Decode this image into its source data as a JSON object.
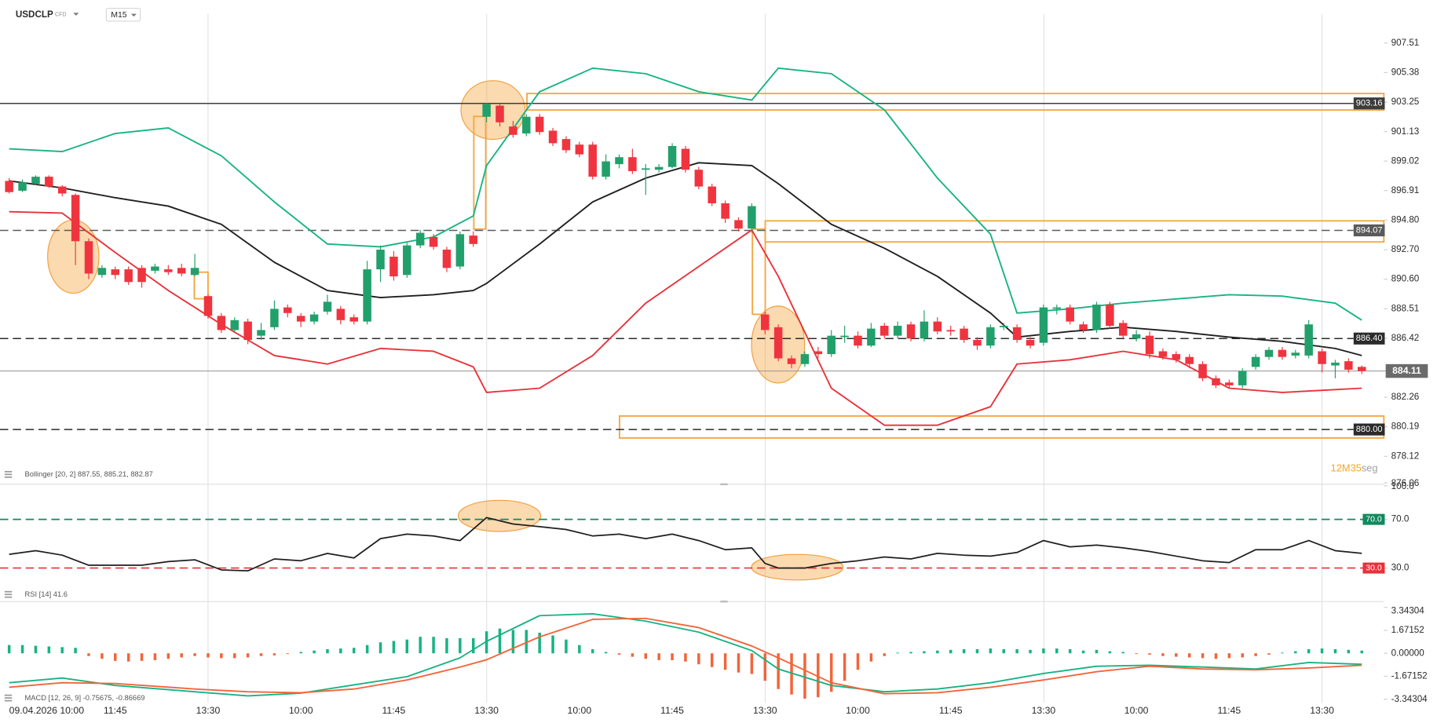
{
  "header": {
    "symbol": "USDCLP",
    "instrument_type": "CFD",
    "timeframe": "M15"
  },
  "chart_data": [
    {
      "type": "candlestick",
      "legend": "Bollinger [20, 2] 887.55, 885.21, 882.87",
      "log_scale": true,
      "ylim": [
        876.2,
        909.63
      ],
      "yticks": [
        907.51,
        905.38,
        903.25,
        901.13,
        899.02,
        896.91,
        {
          "value": 894.8,
          "label": "894.80"
        },
        {
          "value": 892.7,
          "label": "892.70"
        },
        {
          "value": 890.6,
          "label": "890.60"
        },
        888.51,
        886.42,
        882.26,
        880.19,
        878.12,
        876.06
      ],
      "categories": [
        "09.04.2026 10:00",
        null,
        null,
        null,
        null,
        null,
        null,
        null,
        "11:45",
        null,
        null,
        null,
        null,
        null,
        null,
        "13:30",
        null,
        null,
        null,
        null,
        null,
        null,
        "10:00",
        null,
        null,
        null,
        null,
        null,
        null,
        "11:45",
        null,
        null,
        null,
        null,
        null,
        null,
        "13:30",
        null,
        null,
        null,
        null,
        null,
        null,
        "10:00",
        null,
        null,
        null,
        null,
        null,
        null,
        "11:45",
        null,
        null,
        null,
        null,
        null,
        null,
        "13:30",
        null,
        null,
        null,
        null,
        null,
        null,
        "10:00",
        null,
        null,
        null,
        null,
        null,
        null,
        "11:45",
        null,
        null,
        null,
        null,
        null,
        null,
        "13:30",
        null,
        null,
        null,
        null,
        null,
        null,
        "10:00",
        null,
        null,
        null,
        null,
        null,
        null,
        "11:45",
        null,
        null,
        null,
        null,
        null,
        null,
        "13:30",
        null,
        null,
        null
      ],
      "up_color": "#22a06b",
      "down_color": "#f0343f",
      "open": [
        897.6,
        896.9,
        897.4,
        897.9,
        897.2,
        896.6,
        893.3,
        890.9,
        891.3,
        891.3,
        891.4,
        891.2,
        891.3,
        891.4,
        890.9,
        889.4,
        888.0,
        887.0,
        887.6,
        886.6,
        887.2,
        888.6,
        888.0,
        887.6,
        888.3,
        888.5,
        887.9,
        887.6,
        891.3,
        892.2,
        890.9,
        893.0,
        893.6,
        892.7,
        891.5,
        893.7,
        902.2,
        903.0,
        901.5,
        901.0,
        902.2,
        901.2,
        900.6,
        900.2,
        900.2,
        897.9,
        898.8,
        899.3,
        898.4,
        898.4,
        898.6,
        899.9,
        898.4,
        897.2,
        896.0,
        894.8,
        894.2,
        888.1,
        887.2,
        885.0,
        884.6,
        885.5,
        885.3,
        886.5,
        886.6,
        885.9,
        887.3,
        886.6,
        887.4,
        886.4,
        887.6,
        887.0,
        887.1,
        886.3,
        885.9,
        887.2,
        887.2,
        886.3,
        886.1,
        888.5,
        888.6,
        887.4,
        887.0,
        888.8,
        887.5,
        886.4,
        886.6,
        885.5,
        885.3,
        885.1,
        884.6,
        883.6,
        883.3,
        883.1,
        884.4,
        885.1,
        885.6,
        885.2,
        885.2,
        885.5,
        884.5,
        884.8,
        884.4
      ],
      "high": [
        897.8,
        897.7,
        898.0,
        898.0,
        897.3,
        896.7,
        893.5,
        891.6,
        891.5,
        891.5,
        891.6,
        891.7,
        891.6,
        891.7,
        892.4,
        889.5,
        888.2,
        887.9,
        887.8,
        887.5,
        889.1,
        888.8,
        888.2,
        888.3,
        889.5,
        888.7,
        888.1,
        891.9,
        893.0,
        892.6,
        893.2,
        894.1,
        893.8,
        892.9,
        894.0,
        894.0,
        903.2,
        903.1,
        901.9,
        902.4,
        902.4,
        901.4,
        900.8,
        900.4,
        900.4,
        899.5,
        899.5,
        899.9,
        898.8,
        898.8,
        900.3,
        900.1,
        898.6,
        897.4,
        896.2,
        895.0,
        896.0,
        888.3,
        887.4,
        885.2,
        885.5,
        885.8,
        887.0,
        887.3,
        886.9,
        887.5,
        887.5,
        887.6,
        887.6,
        888.4,
        887.9,
        887.3,
        887.3,
        886.5,
        887.4,
        887.5,
        887.4,
        886.5,
        888.8,
        888.8,
        888.8,
        887.6,
        889.0,
        889.0,
        887.7,
        887.0,
        886.9,
        885.7,
        885.5,
        885.3,
        884.8,
        883.8,
        883.5,
        884.3,
        885.3,
        885.8,
        885.8,
        885.6,
        887.7,
        885.7,
        884.9,
        885.0,
        884.5
      ],
      "low": [
        896.7,
        896.8,
        897.3,
        897.1,
        896.5,
        891.6,
        890.6,
        890.7,
        890.6,
        890.2,
        890.0,
        891.0,
        890.9,
        890.8,
        890.8,
        887.8,
        886.8,
        886.9,
        886.0,
        886.3,
        887.0,
        887.9,
        887.2,
        887.4,
        888.1,
        887.4,
        887.4,
        887.4,
        890.4,
        890.5,
        890.7,
        892.8,
        892.7,
        891.1,
        891.3,
        892.9,
        901.8,
        901.5,
        900.7,
        900.8,
        900.9,
        900.1,
        899.6,
        899.3,
        897.7,
        897.7,
        898.5,
        898.1,
        896.6,
        898.2,
        898.5,
        898.2,
        897.0,
        895.8,
        894.6,
        894.0,
        893.9,
        886.7,
        884.8,
        884.3,
        884.4,
        885.0,
        885.1,
        886.1,
        885.7,
        885.8,
        886.4,
        886.4,
        886.2,
        886.2,
        886.7,
        886.6,
        886.1,
        885.6,
        885.7,
        887.0,
        886.1,
        885.7,
        885.9,
        888.1,
        887.4,
        886.8,
        886.8,
        887.1,
        886.4,
        886.2,
        885.0,
        884.9,
        884.7,
        884.3,
        883.4,
        882.9,
        882.9,
        882.9,
        884.2,
        884.9,
        884.9,
        885.0,
        885.0,
        884.0,
        883.6,
        884.0,
        883.9
      ],
      "close": [
        896.8,
        897.5,
        897.9,
        897.2,
        896.7,
        893.3,
        891.0,
        891.4,
        890.9,
        890.4,
        890.4,
        891.5,
        891.1,
        891.0,
        891.4,
        888.0,
        887.0,
        887.7,
        886.3,
        887.0,
        888.5,
        888.2,
        887.6,
        888.1,
        889.0,
        887.7,
        887.6,
        891.3,
        892.7,
        890.8,
        893.0,
        893.9,
        892.9,
        891.4,
        893.8,
        893.1,
        903.1,
        901.8,
        900.9,
        902.2,
        901.1,
        900.3,
        899.8,
        899.5,
        897.9,
        899.0,
        899.3,
        898.3,
        898.5,
        898.6,
        900.1,
        898.4,
        897.2,
        896.0,
        894.9,
        894.2,
        895.8,
        887.0,
        885.0,
        884.6,
        885.3,
        885.3,
        886.6,
        886.6,
        885.9,
        887.1,
        886.6,
        887.3,
        886.4,
        887.6,
        886.9,
        886.9,
        886.3,
        885.9,
        887.2,
        887.3,
        886.3,
        885.9,
        888.6,
        888.6,
        887.6,
        887.0,
        888.8,
        887.3,
        886.6,
        886.7,
        885.3,
        885.1,
        884.9,
        884.6,
        883.6,
        883.1,
        883.1,
        884.1,
        885.1,
        885.6,
        885.1,
        885.4,
        887.4,
        884.6,
        884.7,
        884.2,
        884.1
      ],
      "bands": {
        "x": [
          0,
          4,
          8,
          12,
          16,
          20,
          24,
          28,
          32,
          35,
          36,
          40,
          44,
          48,
          52,
          56,
          58,
          62,
          66,
          70,
          74,
          76,
          80,
          84,
          88,
          92,
          96,
          100,
          102
        ],
        "series": [
          {
            "color": "#17b383",
            "values": [
              899.9,
              899.7,
              901.0,
              901.4,
              899.4,
              896.1,
              893.1,
              892.9,
              893.6,
              895.1,
              898.7,
              904.0,
              905.7,
              905.3,
              904.0,
              903.4,
              905.7,
              905.3,
              902.7,
              897.8,
              893.8,
              888.2,
              888.5,
              888.9,
              889.2,
              889.5,
              889.4,
              888.9,
              887.7
            ]
          },
          {
            "color": "#1f1f1f",
            "values": [
              897.6,
              897.1,
              896.4,
              895.8,
              894.5,
              891.8,
              889.8,
              889.3,
              889.5,
              889.8,
              890.3,
              893.1,
              896.1,
              897.8,
              898.9,
              898.7,
              897.4,
              894.5,
              892.8,
              890.8,
              888.2,
              886.5,
              886.9,
              887.2,
              886.9,
              886.5,
              886.2,
              885.7,
              885.2
            ]
          },
          {
            "color": "#e8313a",
            "values": [
              895.4,
              895.3,
              892.5,
              889.8,
              887.4,
              885.2,
              884.6,
              885.7,
              885.5,
              884.4,
              882.6,
              882.9,
              885.2,
              888.9,
              891.5,
              894.1,
              890.8,
              882.9,
              880.3,
              880.3,
              881.6,
              884.6,
              884.9,
              885.5,
              884.9,
              882.9,
              882.6,
              882.8,
              882.9
            ]
          }
        ]
      },
      "levels": [
        {
          "value": 903.16,
          "color": "#3d3d3d",
          "dashed": false
        },
        {
          "value": 894.07,
          "color": "#5a5a5a",
          "dashed": true
        },
        {
          "value": 886.4,
          "label": "886.40",
          "color": "#2b2b2b",
          "dashed": true
        },
        {
          "value": 880,
          "label": "880.00",
          "color": "#2b2b2b",
          "dashed": true
        }
      ],
      "current_price": {
        "value": 884.11,
        "color": "#6b6b6b"
      },
      "countdown": [
        {
          "text": "12M",
          "color": "#f5a623"
        },
        {
          "text": "35",
          "color": "#f5a623"
        },
        {
          "text": "seg",
          "color": "#a0a0a0"
        }
      ]
    },
    {
      "type": "line",
      "legend": "RSI [14] 41.6",
      "ylim": [
        10,
        100
      ],
      "yticks": [
        {
          "value": 100,
          "label": "100.0"
        },
        {
          "value": 70,
          "label": "70.0"
        },
        {
          "value": 30,
          "label": "30.0"
        }
      ],
      "color": "#1f1f1f",
      "x": [
        0,
        2,
        4,
        6,
        8,
        10,
        12,
        14,
        16,
        18,
        20,
        22,
        24,
        26,
        28,
        30,
        32,
        34,
        36,
        38,
        40,
        42,
        44,
        46,
        48,
        50,
        52,
        54,
        56,
        57,
        58,
        60,
        62,
        64,
        66,
        68,
        70,
        72,
        74,
        76,
        78,
        80,
        82,
        84,
        86,
        88,
        90,
        92,
        94,
        96,
        98,
        100,
        102
      ],
      "values": [
        41.3,
        44.3,
        40.6,
        32.3,
        32.3,
        32.3,
        35.3,
        36.8,
        28.5,
        27.7,
        37.5,
        36.0,
        42.0,
        38.3,
        54.2,
        57.9,
        56.4,
        52.6,
        71.5,
        66.2,
        64.0,
        61.7,
        56.4,
        57.9,
        54.2,
        57.9,
        52.6,
        45.1,
        46.6,
        33.8,
        30.0,
        30.0,
        33.8,
        36.0,
        39.1,
        37.5,
        42.1,
        40.6,
        39.8,
        42.8,
        52.6,
        47.4,
        48.9,
        46.6,
        43.6,
        39.8,
        36.0,
        34.5,
        45.1,
        45.1,
        52.6,
        44.3,
        42.1
      ],
      "levels": [
        {
          "value": 70,
          "label": "70.0",
          "color": "#0f8a5f"
        },
        {
          "value": 30,
          "label": "30.0",
          "color": "#e8313a"
        }
      ]
    },
    {
      "type": "combo",
      "legend": "MACD [12, 26, 9] -0.75675, -0.86669",
      "ylim": [
        -3.6,
        3.6
      ],
      "yticks": [
        3.34304,
        1.67152,
        {
          "value": 0,
          "label": "0.00000"
        },
        -1.67152,
        -3.34304
      ],
      "histogram": {
        "up_color": "#17b383",
        "down_color": "#f2653a",
        "values": [
          0.6,
          0.6,
          0.55,
          0.5,
          0.45,
          0.4,
          -0.2,
          -0.4,
          -0.55,
          -0.6,
          -0.55,
          -0.5,
          -0.4,
          -0.3,
          -0.2,
          -0.3,
          -0.35,
          -0.35,
          -0.3,
          -0.2,
          -0.15,
          -0.05,
          0.1,
          0.2,
          0.3,
          0.35,
          0.4,
          0.6,
          0.8,
          0.9,
          1.0,
          1.2,
          1.2,
          1.1,
          1.1,
          1.1,
          1.6,
          1.8,
          1.7,
          1.7,
          1.5,
          1.3,
          1.0,
          0.6,
          0.3,
          0.1,
          -0.1,
          -0.25,
          -0.4,
          -0.5,
          -0.5,
          -0.6,
          -0.8,
          -1.0,
          -1.2,
          -1.4,
          -1.5,
          -2.0,
          -2.6,
          -3.0,
          -3.3,
          -3.2,
          -2.8,
          -2.0,
          -1.2,
          -0.6,
          -0.2,
          0.05,
          0.1,
          0.15,
          0.2,
          0.25,
          0.3,
          0.3,
          0.35,
          0.3,
          0.3,
          0.25,
          0.35,
          0.35,
          0.3,
          0.2,
          0.25,
          0.15,
          0.1,
          -0.05,
          -0.1,
          -0.2,
          -0.25,
          -0.3,
          -0.35,
          -0.4,
          -0.35,
          -0.3,
          -0.2,
          -0.1,
          0.05,
          0.15,
          0.3,
          0.35,
          0.3,
          0.25,
          0.2
        ]
      },
      "x": [
        0,
        4,
        8,
        14,
        18,
        22,
        26,
        30,
        34,
        36,
        40,
        44,
        48,
        52,
        56,
        58,
        62,
        66,
        70,
        74,
        78,
        82,
        86,
        90,
        94,
        98,
        102
      ],
      "lines": [
        {
          "color": "#17b383",
          "values": [
            -2.14,
            -1.8,
            -2.34,
            -2.8,
            -3.1,
            -2.9,
            -2.3,
            -1.7,
            -0.33,
            0.87,
            2.74,
            2.87,
            2.34,
            1.54,
            0.2,
            -1.14,
            -2.34,
            -2.8,
            -2.6,
            -2.14,
            -1.47,
            -0.94,
            -0.87,
            -1.0,
            -1.14,
            -0.67,
            -0.8
          ]
        },
        {
          "color": "#f2653a",
          "values": [
            -2.47,
            -2.14,
            -2.2,
            -2.6,
            -2.8,
            -2.87,
            -2.6,
            -1.94,
            -1.0,
            -0.47,
            1.2,
            2.47,
            2.54,
            1.87,
            0.53,
            -0.33,
            -2.14,
            -2.94,
            -2.87,
            -2.47,
            -1.94,
            -1.34,
            -0.94,
            -1.14,
            -1.2,
            -1.07,
            -0.87
          ]
        }
      ]
    }
  ]
}
